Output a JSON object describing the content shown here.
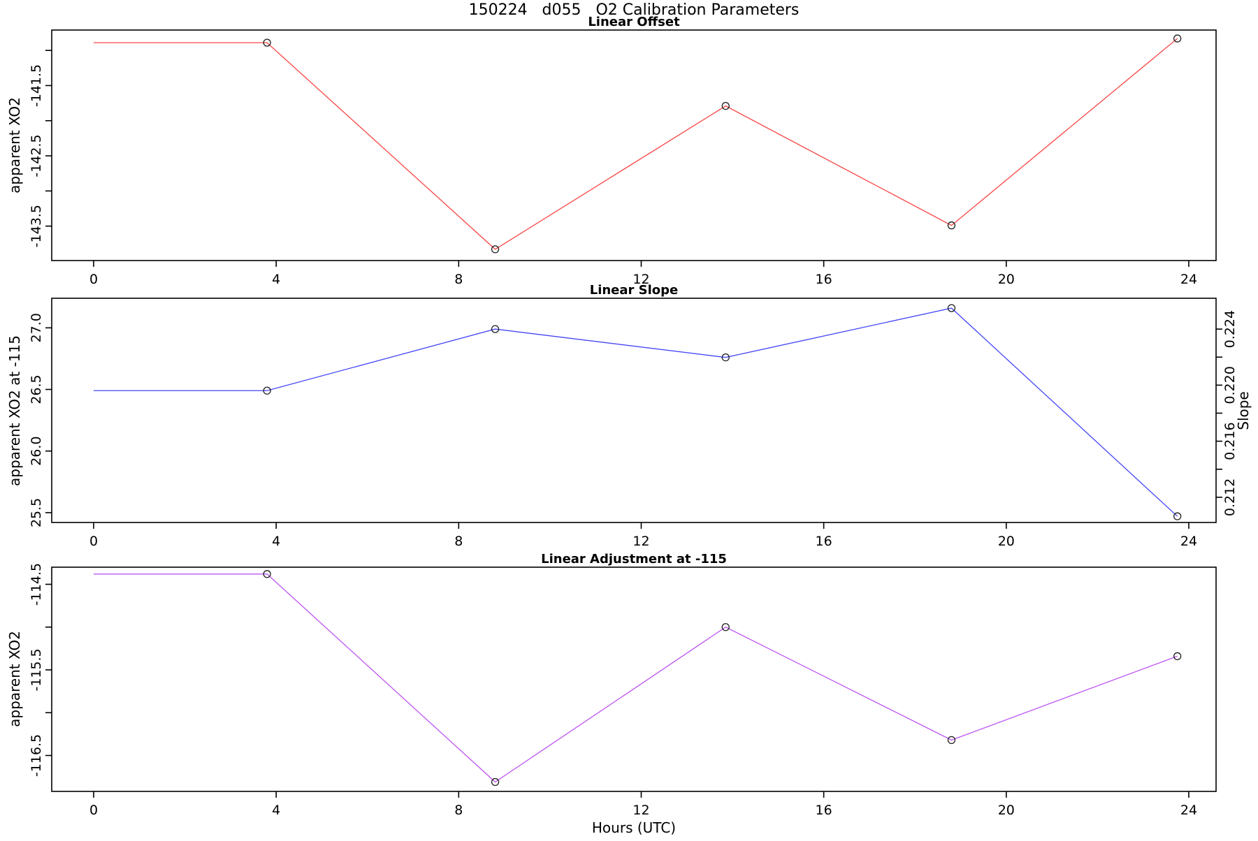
{
  "figure": {
    "title_display": "150224   d055   O2 Calibration Parameters",
    "title_segments": [
      "150224",
      "d055",
      "O2 Calibration Parameters"
    ]
  },
  "x_axis": {
    "label": "Hours (UTC)",
    "ticks": [
      0,
      4,
      8,
      12,
      16,
      20,
      24
    ],
    "tick_labels": [
      "0",
      "4",
      "8",
      "12",
      "16",
      "20",
      "24"
    ],
    "range": [
      0,
      24
    ]
  },
  "chart_data": [
    {
      "type": "line",
      "title": "Linear Offset",
      "ylabel": "apparent XO2",
      "color": "#f84545",
      "marker": "open-circle",
      "marker_color": "#1f1f1f",
      "first_marker_index": 1,
      "x": [
        0,
        3.8,
        8.8,
        13.85,
        18.8,
        23.75
      ],
      "y": [
        -140.89,
        -140.89,
        -143.83,
        -141.79,
        -143.49,
        -140.83
      ],
      "yticks": [
        -141.0,
        -141.5,
        -142.0,
        -142.5,
        -143.0,
        -143.5
      ],
      "ytick_labels": [
        "",
        "-141.5",
        "",
        "-142.5",
        "",
        "-143.5"
      ],
      "ylim": [
        -143.99,
        -140.71
      ],
      "grid": "off",
      "legend": "none"
    },
    {
      "type": "line",
      "title": "Linear Slope",
      "ylabel": "apparent XO2 at -115",
      "ylabel_right": "Slope",
      "color": "#4545f8",
      "marker": "open-circle",
      "marker_color": "#1f1f1f",
      "first_marker_index": 1,
      "x": [
        0,
        3.8,
        8.8,
        13.85,
        18.8,
        23.75
      ],
      "y": [
        26.49,
        26.49,
        26.99,
        26.76,
        27.16,
        25.47
      ],
      "slope_values": [
        0.2196,
        0.224,
        0.222,
        0.2255,
        0.2106
      ],
      "yticks": [
        27.0,
        26.5,
        26.0,
        25.5
      ],
      "ytick_labels": [
        "27.0",
        "26.5",
        "26.0",
        "25.5"
      ],
      "right_ticks": [
        0.224,
        0.222,
        0.22,
        0.218,
        0.216,
        0.214,
        0.212
      ],
      "right_tick_labels": [
        "0.224",
        "",
        "0.220",
        "",
        "0.216",
        "",
        "0.212"
      ],
      "ylim": [
        25.42,
        27.24
      ],
      "right_ylim": [
        0.2102,
        0.2262
      ],
      "grid": "off",
      "legend": "none"
    },
    {
      "type": "line",
      "title": "Linear Adjustment at -115",
      "ylabel": "apparent XO2",
      "color": "#be55f2",
      "marker": "open-circle",
      "marker_color": "#1f1f1f",
      "first_marker_index": 1,
      "x": [
        0,
        3.8,
        8.8,
        13.85,
        18.8,
        23.75
      ],
      "y": [
        -114.38,
        -114.38,
        -116.81,
        -115.0,
        -116.32,
        -115.34
      ],
      "yticks": [
        -114.5,
        -115.0,
        -115.5,
        -116.0,
        -116.5
      ],
      "ytick_labels": [
        "-114.5",
        "",
        "-115.5",
        "",
        "-116.5"
      ],
      "ylim": [
        -116.92,
        -114.3
      ],
      "grid": "off",
      "legend": "none"
    }
  ]
}
